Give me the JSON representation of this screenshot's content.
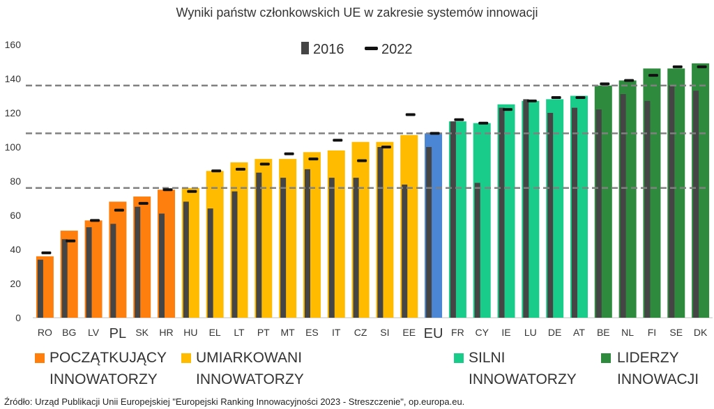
{
  "chart_data": {
    "type": "bar",
    "title": "Wyniki państw członkowskich UE w zakresie systemów innowacji",
    "ylim": [
      0,
      160
    ],
    "yticks": [
      0,
      20,
      40,
      60,
      80,
      100,
      120,
      140,
      160
    ],
    "legend": {
      "series_2016": "2016",
      "marker_2022": "2022",
      "position": "top-center"
    },
    "categories": [
      "RO",
      "BG",
      "LV",
      "PL",
      "SK",
      "HR",
      "HU",
      "EL",
      "LT",
      "PT",
      "MT",
      "ES",
      "IT",
      "CZ",
      "SI",
      "EE",
      "EU",
      "FR",
      "CY",
      "IE",
      "LU",
      "DE",
      "AT",
      "BE",
      "NL",
      "FI",
      "SE",
      "DK"
    ],
    "emphasized_categories": [
      "PL",
      "EU"
    ],
    "values_2023": [
      36,
      51,
      57,
      68,
      71,
      75,
      76,
      86,
      91,
      93,
      93,
      97,
      98,
      103,
      103,
      107,
      108,
      115,
      114,
      125,
      127,
      128,
      130,
      136,
      139,
      146,
      146,
      149
    ],
    "values_2016": [
      34,
      46,
      53,
      55,
      65,
      61,
      68,
      64,
      74,
      85,
      82,
      87,
      82,
      82,
      100,
      78,
      100,
      115,
      79,
      123,
      128,
      120,
      123,
      122,
      131,
      127,
      136,
      133
    ],
    "values_2022": [
      38,
      45,
      57,
      63,
      67,
      75,
      74,
      86,
      87,
      90,
      96,
      93,
      104,
      92,
      100,
      119,
      108,
      116,
      114,
      122,
      127,
      129,
      129,
      137,
      139,
      142,
      147,
      147
    ],
    "groups": [
      {
        "name_line1": "POCZĄTKUJĄCY",
        "name_line2": "INNOWATORZY",
        "color": "#ff7f0e",
        "first": 0,
        "last": 5
      },
      {
        "name_line1": "UMIARKOWANI",
        "name_line2": "INNOWATORZY",
        "color": "#ffbb00",
        "first": 6,
        "last": 15
      },
      {
        "name_line1": "",
        "name_line2": "",
        "color": "#4a86d4",
        "first": 16,
        "last": 16
      },
      {
        "name_line1": "SILNI",
        "name_line2": "INNOWATORZY",
        "color": "#19cc8a",
        "first": 17,
        "last": 22
      },
      {
        "name_line1": "LIDERZY",
        "name_line2": "INNOWACJI",
        "color": "#2e8b3d",
        "first": 23,
        "last": 27
      }
    ],
    "threshold_lines": [
      76,
      108,
      136
    ],
    "colors": {
      "bar_2016": "#454545",
      "marker_2022": "#111111",
      "threshold": "#808080"
    },
    "grid": false
  },
  "source": "Źródło: Urząd Publikacji Unii Europejskiej \"Europejski Ranking  Innowacyjności 2023 - Streszczenie\", op.europa.eu."
}
